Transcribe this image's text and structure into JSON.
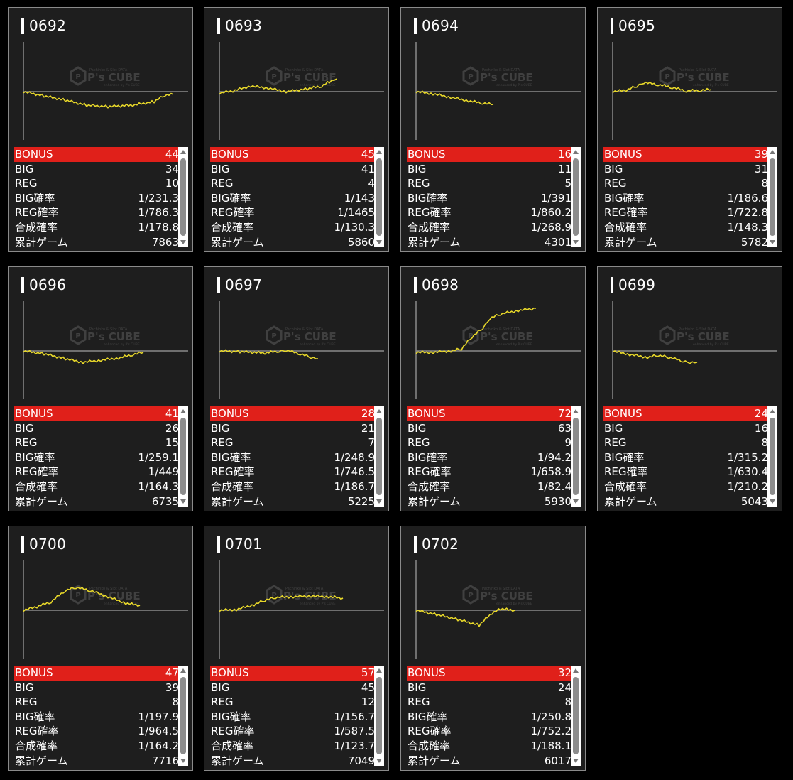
{
  "watermark": {
    "brand": "P's CUBE",
    "tagline_top": "Pachinko & Slot DATA",
    "tagline_bottom": "enhanced by P's CUBE"
  },
  "labels": {
    "bonus": "BONUS",
    "big": "BIG",
    "reg": "REG",
    "big_rate": "BIG確率",
    "reg_rate": "REG確率",
    "combined_rate": "合成確率",
    "total_games": "累計ゲーム"
  },
  "colors": {
    "bonus_row": "#e0201a",
    "graph_line": "#e8d82a",
    "baseline": "#8a8a8a"
  },
  "machines": [
    {
      "id": "0692",
      "bonus": "44",
      "big": "34",
      "reg": "10",
      "big_rate": "1/231.3",
      "reg_rate": "1/786.3",
      "combined_rate": "1/178.8",
      "total_games": "7863"
    },
    {
      "id": "0693",
      "bonus": "45",
      "big": "41",
      "reg": "4",
      "big_rate": "1/143",
      "reg_rate": "1/1465",
      "combined_rate": "1/130.3",
      "total_games": "5860"
    },
    {
      "id": "0694",
      "bonus": "16",
      "big": "11",
      "reg": "5",
      "big_rate": "1/391",
      "reg_rate": "1/860.2",
      "combined_rate": "1/268.9",
      "total_games": "4301"
    },
    {
      "id": "0695",
      "bonus": "39",
      "big": "31",
      "reg": "8",
      "big_rate": "1/186.6",
      "reg_rate": "1/722.8",
      "combined_rate": "1/148.3",
      "total_games": "5782"
    },
    {
      "id": "0696",
      "bonus": "41",
      "big": "26",
      "reg": "15",
      "big_rate": "1/259.1",
      "reg_rate": "1/449",
      "combined_rate": "1/164.3",
      "total_games": "6735"
    },
    {
      "id": "0697",
      "bonus": "28",
      "big": "21",
      "reg": "7",
      "big_rate": "1/248.9",
      "reg_rate": "1/746.5",
      "combined_rate": "1/186.7",
      "total_games": "5225"
    },
    {
      "id": "0698",
      "bonus": "72",
      "big": "63",
      "reg": "9",
      "big_rate": "1/94.2",
      "reg_rate": "1/658.9",
      "combined_rate": "1/82.4",
      "total_games": "5930"
    },
    {
      "id": "0699",
      "bonus": "24",
      "big": "16",
      "reg": "8",
      "big_rate": "1/315.2",
      "reg_rate": "1/630.4",
      "combined_rate": "1/210.2",
      "total_games": "5043"
    },
    {
      "id": "0700",
      "bonus": "47",
      "big": "39",
      "reg": "8",
      "big_rate": "1/197.9",
      "reg_rate": "1/964.5",
      "combined_rate": "1/164.2",
      "total_games": "7716"
    },
    {
      "id": "0701",
      "bonus": "57",
      "big": "45",
      "reg": "12",
      "big_rate": "1/156.7",
      "reg_rate": "1/587.5",
      "combined_rate": "1/123.7",
      "total_games": "7049"
    },
    {
      "id": "0702",
      "bonus": "32",
      "big": "24",
      "reg": "8",
      "big_rate": "1/250.8",
      "reg_rate": "1/752.2",
      "combined_rate": "1/188.1",
      "total_games": "6017"
    }
  ]
}
